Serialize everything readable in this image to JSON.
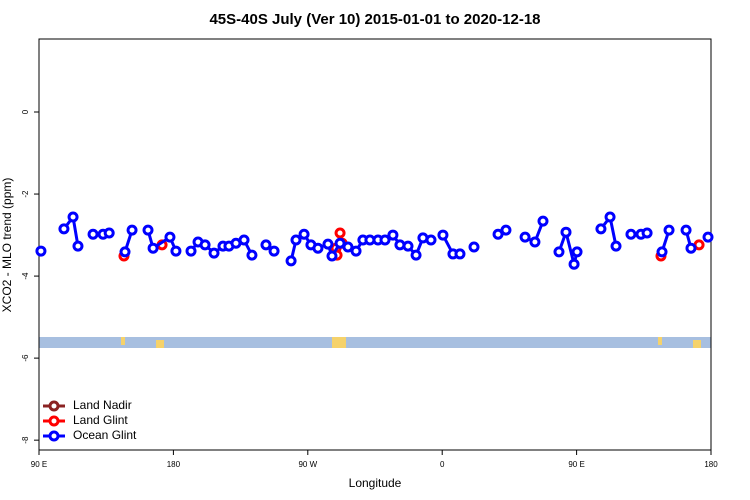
{
  "chart_data": {
    "type": "line",
    "title": "45S-40S July (Ver 10)   2015-01-01 to 2020-12-18",
    "xlabel": "Longitude",
    "ylabel": "XCO2 - MLO trend (ppm)",
    "xlim": [
      90,
      540
    ],
    "ylim": [
      -8.24,
      1.78
    ],
    "xticks": [
      {
        "value": 90,
        "label": "90 E"
      },
      {
        "value": 180,
        "label": "180"
      },
      {
        "value": 270,
        "label": "90 W"
      },
      {
        "value": 360,
        "label": "0"
      },
      {
        "value": 450,
        "label": "90 E"
      },
      {
        "value": 540,
        "label": "180"
      }
    ],
    "yticks": [
      0,
      -2,
      -4,
      -6,
      -8
    ],
    "legend_position": "bottom-left",
    "series": [
      {
        "name": "Land Nadir",
        "color": "#8b2323",
        "x": [],
        "values": []
      },
      {
        "name": "Land Glint",
        "color": "#ff0000",
        "x": [
          146.9,
          null,
          172.4,
          null,
          288.9,
          null,
          289.6,
          291.6,
          293,
          null,
          506.5,
          null,
          532
        ],
        "values": [
          -3.51,
          null,
          -3.24,
          null,
          -3.32,
          null,
          -3.49,
          -2.95,
          -3.2,
          null,
          -3.51,
          null,
          -3.24
        ]
      },
      {
        "name": "Ocean Glint",
        "color": "#0000ff",
        "x": [
          91.3,
          null,
          106.7,
          112.8,
          116.1,
          null,
          126.2,
          132.9,
          137,
          null,
          147.6,
          152.3,
          null,
          163,
          166.4,
          177.7,
          181.7,
          null,
          191.8,
          196.5,
          201.2,
          207.2,
          213.2,
          217.2,
          221.9,
          227.3,
          232.6,
          null,
          242,
          247.4,
          null,
          258.8,
          262.1,
          267.5,
          272.1,
          276.8,
          283.5,
          286.2,
          291.6,
          296.9,
          302.3,
          306.9,
          311.6,
          317,
          321.7,
          327,
          331.7,
          337.1,
          342.5,
          347.1,
          352.5,
          null,
          360.5,
          367.2,
          371.9,
          null,
          381.3,
          null,
          397.4,
          402.7,
          null,
          415.5,
          422.1,
          427.5,
          null,
          438.2,
          442.9,
          448.3,
          450.3,
          null,
          466.3,
          472.4,
          476.4,
          null,
          486.4,
          493.1,
          497.2,
          null,
          507.2,
          511.9,
          null,
          523.3,
          526.6,
          null,
          538
        ],
        "values": [
          -3.39,
          null,
          -2.85,
          -2.56,
          -3.27,
          null,
          -2.98,
          -2.98,
          -2.95,
          null,
          -3.41,
          -2.88,
          null,
          -2.88,
          -3.32,
          -3.05,
          -3.39,
          null,
          -3.39,
          -3.17,
          -3.24,
          -3.44,
          -3.27,
          -3.27,
          -3.2,
          -3.12,
          -3.49,
          null,
          -3.24,
          -3.39,
          null,
          -3.63,
          -3.12,
          -2.98,
          -3.24,
          -3.32,
          -3.22,
          -3.51,
          -3.2,
          -3.29,
          -3.39,
          -3.12,
          -3.12,
          -3.12,
          -3.12,
          -3.0,
          -3.24,
          -3.27,
          -3.49,
          -3.07,
          -3.12,
          null,
          -3.0,
          -3.46,
          -3.46,
          null,
          -3.29,
          null,
          -2.98,
          -2.88,
          null,
          -3.05,
          -3.17,
          -2.66,
          null,
          -3.41,
          -2.93,
          -3.71,
          -3.41,
          null,
          -2.85,
          -2.56,
          -3.27,
          null,
          -2.98,
          -2.98,
          -2.95,
          null,
          -3.41,
          -2.88,
          null,
          -2.88,
          -3.32,
          null,
          -3.05
        ]
      }
    ]
  }
}
